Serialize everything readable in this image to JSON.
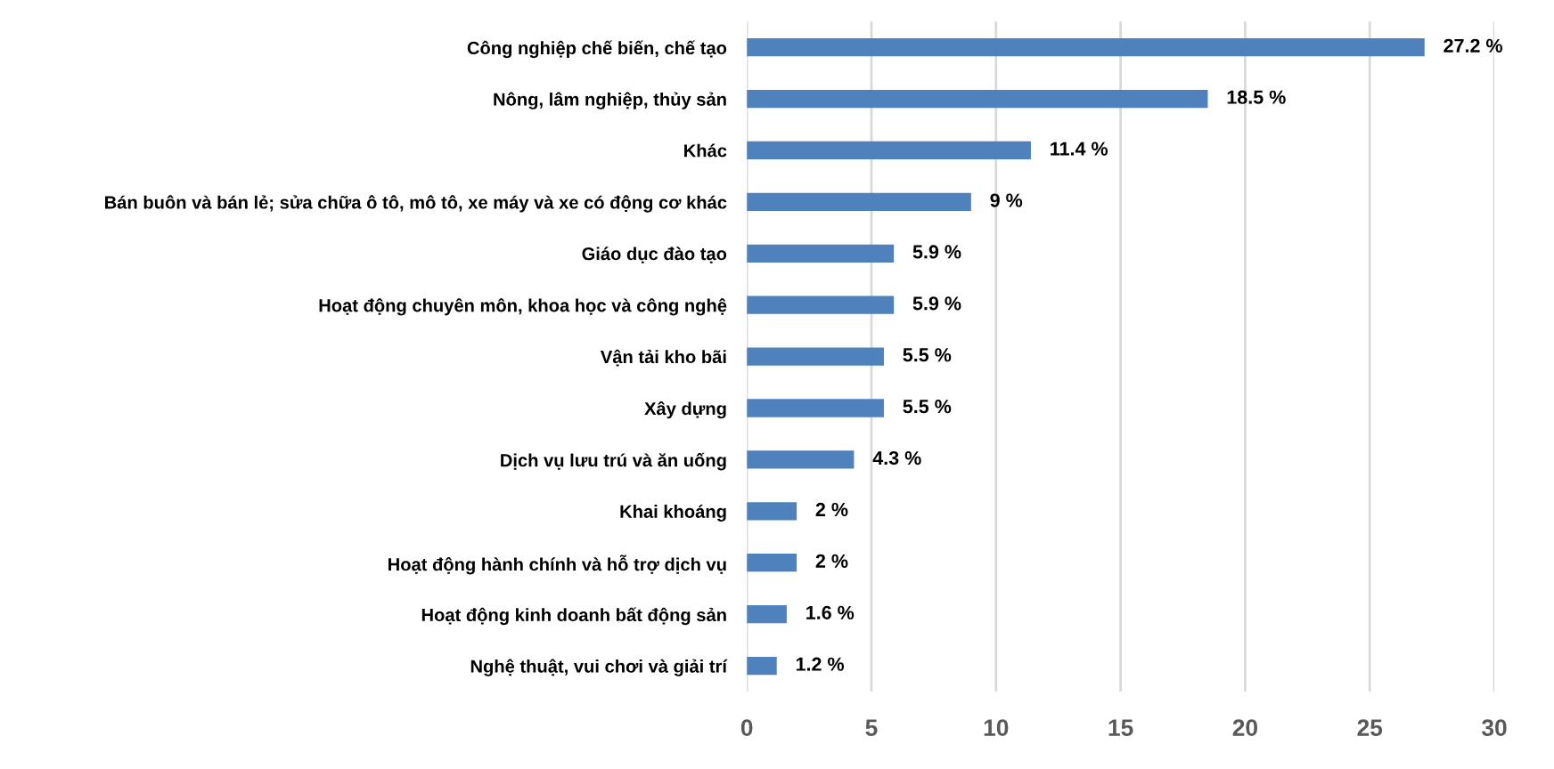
{
  "chart_data": {
    "type": "bar",
    "orientation": "horizontal",
    "categories": [
      "Công nghiệp chế biến, chế tạo",
      "Nông, lâm nghiệp, thủy sản",
      "Khác",
      "Bán buôn và bán lẻ; sửa chữa ô tô, mô tô, xe máy và xe có động cơ khác",
      "Giáo dục đào tạo",
      "Hoạt động chuyên môn, khoa học và công nghệ",
      "Vận tải kho bãi",
      "Xây dựng",
      "Dịch vụ lưu trú và ăn uống",
      "Khai khoáng",
      "Hoạt động hành chính và hỗ trợ dịch vụ",
      "Hoạt động kinh doanh bất động sản",
      "Nghệ thuật, vui chơi và giải trí"
    ],
    "values": [
      27.2,
      18.5,
      11.4,
      9,
      5.9,
      5.9,
      5.5,
      5.5,
      4.3,
      2,
      2,
      1.6,
      1.2
    ],
    "value_labels": [
      "27.2 %",
      "18.5 %",
      "11.4 %",
      "9 %",
      "5.9 %",
      "5.9 %",
      "5.5 %",
      "5.5 %",
      "4.3 %",
      "2 %",
      "2 %",
      "1.6 %",
      "1.2 %"
    ],
    "color": "#4f81bd",
    "xlim": [
      0,
      30
    ],
    "xticks": [
      0,
      5,
      10,
      15,
      20,
      25,
      30
    ],
    "grid": "x"
  }
}
